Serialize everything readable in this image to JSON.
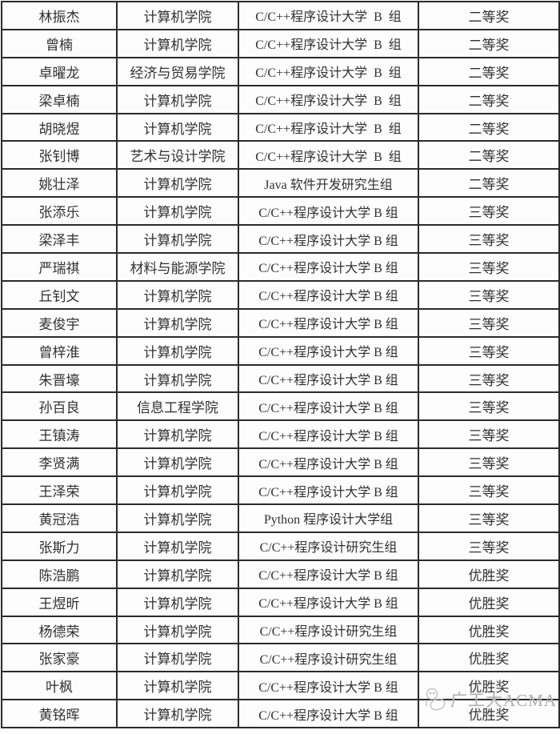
{
  "table": {
    "column_keys": [
      "name",
      "college",
      "category",
      "award"
    ],
    "rows": [
      {
        "name": "林振杰",
        "college": "计算机学院",
        "category": "C/C++程序设计大学  B  组",
        "award": "二等奖"
      },
      {
        "name": "曾楠",
        "college": "计算机学院",
        "category": "C/C++程序设计大学  B  组",
        "award": "二等奖"
      },
      {
        "name": "卓曜龙",
        "college": "经济与贸易学院",
        "category": "C/C++程序设计大学  B  组",
        "award": "二等奖"
      },
      {
        "name": "梁卓楠",
        "college": "计算机学院",
        "category": "C/C++程序设计大学  B  组",
        "award": "二等奖"
      },
      {
        "name": "胡晓煜",
        "college": "计算机学院",
        "category": "C/C++程序设计大学  B  组",
        "award": "二等奖"
      },
      {
        "name": "张钊博",
        "college": "艺术与设计学院",
        "category": "C/C++程序设计大学  B  组",
        "award": "二等奖"
      },
      {
        "name": "姚壮泽",
        "college": "计算机学院",
        "category": "Java 软件开发研究生组",
        "award": "二等奖"
      },
      {
        "name": "张添乐",
        "college": "计算机学院",
        "category": "C/C++程序设计大学 B 组",
        "award": "三等奖"
      },
      {
        "name": "梁泽丰",
        "college": "计算机学院",
        "category": "C/C++程序设计大学 B 组",
        "award": "三等奖"
      },
      {
        "name": "严瑞祺",
        "college": "材料与能源学院",
        "category": "C/C++程序设计大学 B 组",
        "award": "三等奖"
      },
      {
        "name": "丘钊文",
        "college": "计算机学院",
        "category": "C/C++程序设计大学 B 组",
        "award": "三等奖"
      },
      {
        "name": "麦俊宇",
        "college": "计算机学院",
        "category": "C/C++程序设计大学 B 组",
        "award": "三等奖"
      },
      {
        "name": "曾梓淮",
        "college": "计算机学院",
        "category": "C/C++程序设计大学 B 组",
        "award": "三等奖"
      },
      {
        "name": "朱晋壕",
        "college": "计算机学院",
        "category": "C/C++程序设计大学 B 组",
        "award": "三等奖"
      },
      {
        "name": "孙百良",
        "college": "信息工程学院",
        "category": "C/C++程序设计大学 B 组",
        "award": "三等奖"
      },
      {
        "name": "王镇涛",
        "college": "计算机学院",
        "category": "C/C++程序设计大学 B 组",
        "award": "三等奖"
      },
      {
        "name": "李贤满",
        "college": "计算机学院",
        "category": "C/C++程序设计大学 B 组",
        "award": "三等奖"
      },
      {
        "name": "王泽荣",
        "college": "计算机学院",
        "category": "C/C++程序设计大学 B 组",
        "award": "三等奖"
      },
      {
        "name": "黄冠浩",
        "college": "计算机学院",
        "category": "Python 程序设计大学组",
        "award": "三等奖"
      },
      {
        "name": "张斯力",
        "college": "计算机学院",
        "category": "C/C++程序设计研究生组",
        "award": "三等奖"
      },
      {
        "name": "陈浩鹏",
        "college": "计算机学院",
        "category": "C/C++程序设计大学 B 组",
        "award": "优胜奖"
      },
      {
        "name": "王煜昕",
        "college": "计算机学院",
        "category": "C/C++程序设计大学 B 组",
        "award": "优胜奖"
      },
      {
        "name": "杨德荣",
        "college": "计算机学院",
        "category": "C/C++程序设计研究生组",
        "award": "优胜奖"
      },
      {
        "name": "张家豪",
        "college": "计算机学院",
        "category": "C/C++程序设计研究生组",
        "award": "优胜奖"
      },
      {
        "name": "叶枫",
        "college": "计算机学院",
        "category": "C/C++程序设计大学 B 组",
        "award": "优胜奖"
      },
      {
        "name": "黄铭晖",
        "college": "计算机学院",
        "category": "C/C++程序设计大学 B 组",
        "award": "优胜奖"
      }
    ]
  },
  "watermark": {
    "text": "广工大ACMA"
  },
  "colors": {
    "border": "#2b2b2b",
    "text": "#303030",
    "watermark": "#b3b3b3",
    "background": "#fdfdfd"
  }
}
